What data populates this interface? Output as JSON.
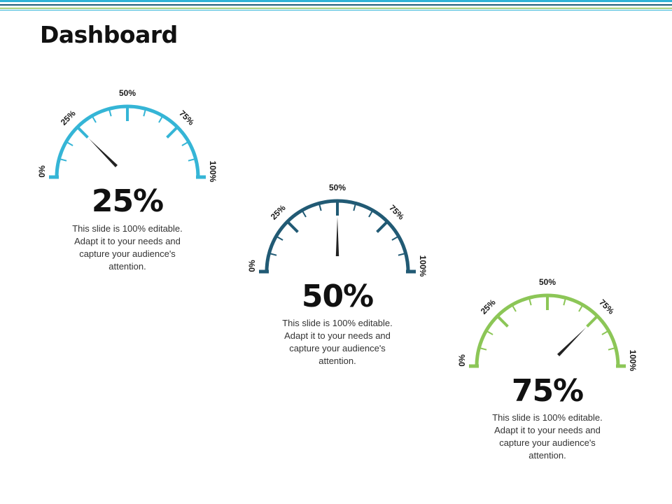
{
  "title": "Dashboard",
  "colors": {
    "band_light": "#2eb3d6",
    "band_dark": "#1f5e7a",
    "band_green": "#8cc152",
    "needle": "#222222"
  },
  "gauges": [
    {
      "value": 25,
      "value_label": "25%",
      "color": "#35b5d6",
      "labels": {
        "p0": "0%",
        "p25": "25%",
        "p50": "50%",
        "p75": "75%",
        "p100": "100%"
      },
      "description": "This slide is 100% editable. Adapt it to your needs and capture your audience's attention."
    },
    {
      "value": 50,
      "value_label": "50%",
      "color": "#215a74",
      "labels": {
        "p0": "0%",
        "p25": "25%",
        "p50": "50%",
        "p75": "75%",
        "p100": "100%"
      },
      "description": "This slide is 100% editable. Adapt it to your needs and capture your audience's attention."
    },
    {
      "value": 75,
      "value_label": "75%",
      "color": "#8cc657",
      "labels": {
        "p0": "0%",
        "p25": "25%",
        "p50": "50%",
        "p75": "75%",
        "p100": "100%"
      },
      "description": "This slide is 100% editable. Adapt it to your needs and capture your audience's attention."
    }
  ]
}
